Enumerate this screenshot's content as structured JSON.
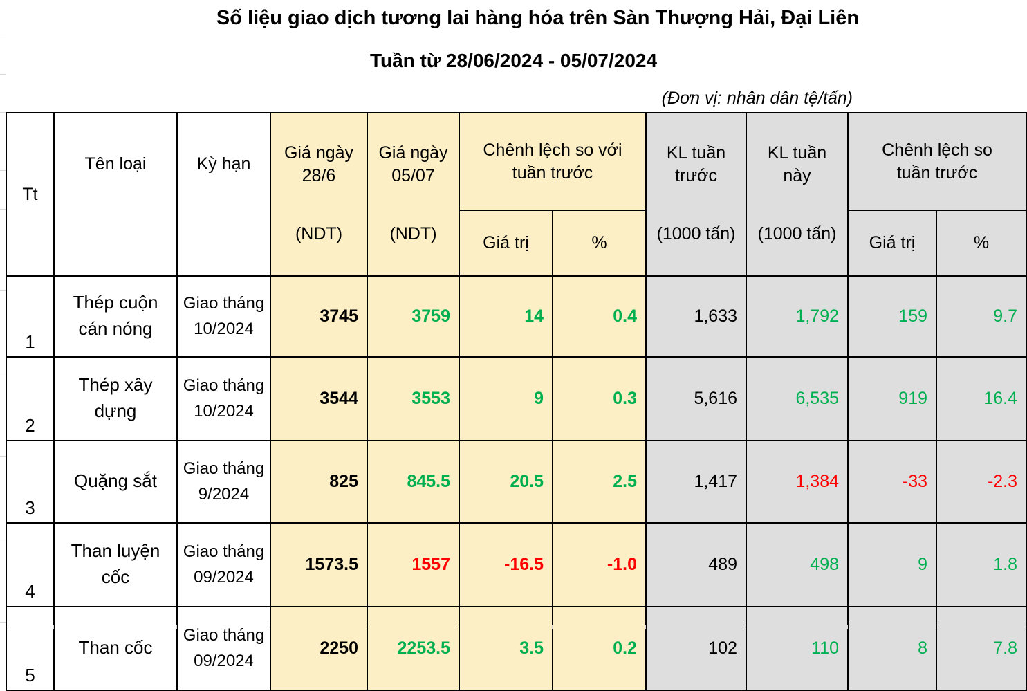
{
  "page": {
    "title_line1": "Số liệu giao dịch tương lai hàng hóa trên Sàn Thượng Hải, Đại Liên",
    "title_line2": "Tuần từ 28/06/2024 - 05/07/2024",
    "unit_note": "(Đơn vị: nhân dân tệ/tấn)"
  },
  "colors": {
    "positive": "#00B050",
    "negative": "#FF0000",
    "neutral": "#000000",
    "price_columns_fill": "#FCEFC5",
    "volume_columns_fill": "#DEDEDE"
  },
  "table": {
    "headers": {
      "tt": "Tt",
      "ten_loai": "Tên loại",
      "ky_han": "Kỳ hạn",
      "gia_prev_top": "Giá ngày\n28/6",
      "gia_prev_bottom": "(NDT)",
      "gia_now_top": "Giá ngày\n05/07",
      "gia_now_bottom": "(NDT)",
      "chenh_lech_gia": "Chênh lệch so với\ntuần trước",
      "gia_tri_1": "Giá trị",
      "pct_1": "%",
      "kl_prev_top": "KL tuần\ntrước",
      "kl_prev_bottom": "(1000 tấn)",
      "kl_now_top": "KL tuần\nnày",
      "kl_now_bottom": "(1000 tấn)",
      "chenh_lech_kl": "Chênh lệch so\ntuần trước",
      "gia_tri_2": "Giá trị",
      "pct_2": "%"
    },
    "rows": [
      {
        "tt": "1",
        "name": "Thép cuộn cán nóng",
        "term": "Giao tháng 10/2024",
        "price_prev": {
          "text": "3745",
          "color": "black"
        },
        "price_now": {
          "text": "3759",
          "color": "green"
        },
        "diff_value": {
          "text": "14",
          "color": "green"
        },
        "diff_pct": {
          "text": "0.4",
          "color": "green"
        },
        "vol_prev": {
          "text": "1,633",
          "color": "black"
        },
        "vol_now": {
          "text": "1,792",
          "color": "green"
        },
        "vol_diff_value": {
          "text": "159",
          "color": "green"
        },
        "vol_diff_pct": {
          "text": "9.7",
          "color": "green"
        }
      },
      {
        "tt": "2",
        "name": "Thép xây dựng",
        "term": "Giao tháng 10/2024",
        "price_prev": {
          "text": "3544",
          "color": "black"
        },
        "price_now": {
          "text": "3553",
          "color": "green"
        },
        "diff_value": {
          "text": "9",
          "color": "green"
        },
        "diff_pct": {
          "text": "0.3",
          "color": "green"
        },
        "vol_prev": {
          "text": "5,616",
          "color": "black"
        },
        "vol_now": {
          "text": "6,535",
          "color": "green"
        },
        "vol_diff_value": {
          "text": "919",
          "color": "green"
        },
        "vol_diff_pct": {
          "text": "16.4",
          "color": "green"
        }
      },
      {
        "tt": "3",
        "name": "Quặng sắt",
        "term": "Giao tháng 9/2024",
        "price_prev": {
          "text": "825",
          "color": "black"
        },
        "price_now": {
          "text": "845.5",
          "color": "green"
        },
        "diff_value": {
          "text": "20.5",
          "color": "green"
        },
        "diff_pct": {
          "text": "2.5",
          "color": "green"
        },
        "vol_prev": {
          "text": "1,417",
          "color": "black"
        },
        "vol_now": {
          "text": "1,384",
          "color": "red"
        },
        "vol_diff_value": {
          "text": "-33",
          "color": "red"
        },
        "vol_diff_pct": {
          "text": "-2.3",
          "color": "red"
        }
      },
      {
        "tt": "4",
        "name": "Than luyện cốc",
        "term": "Giao tháng 09/2024",
        "price_prev": {
          "text": "1573.5",
          "color": "black"
        },
        "price_now": {
          "text": "1557",
          "color": "red"
        },
        "diff_value": {
          "text": "-16.5",
          "color": "red"
        },
        "diff_pct": {
          "text": "-1.0",
          "color": "red"
        },
        "vol_prev": {
          "text": "489",
          "color": "black"
        },
        "vol_now": {
          "text": "498",
          "color": "green"
        },
        "vol_diff_value": {
          "text": "9",
          "color": "green"
        },
        "vol_diff_pct": {
          "text": "1.8",
          "color": "green"
        }
      },
      {
        "tt": "5",
        "name": "Than cốc",
        "term": "Giao tháng 09/2024",
        "price_prev": {
          "text": "2250",
          "color": "black"
        },
        "price_now": {
          "text": "2253.5",
          "color": "green"
        },
        "diff_value": {
          "text": "3.5",
          "color": "green"
        },
        "diff_pct": {
          "text": "0.2",
          "color": "green"
        },
        "vol_prev": {
          "text": "102",
          "color": "black"
        },
        "vol_now": {
          "text": "110",
          "color": "green"
        },
        "vol_diff_value": {
          "text": "8",
          "color": "green"
        },
        "vol_diff_pct": {
          "text": "7.8",
          "color": "green"
        }
      }
    ]
  }
}
